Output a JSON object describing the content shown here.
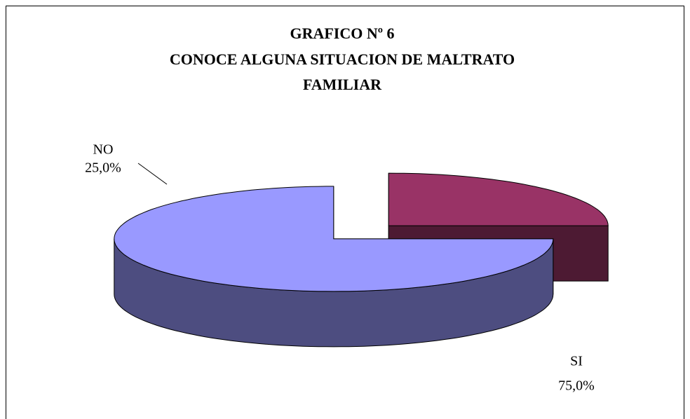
{
  "chart_data": {
    "type": "pie3d",
    "title": [
      "GRAFICO Nº 6",
      "CONOCE ALGUNA SITUACION DE MALTRATO",
      "FAMILIAR"
    ],
    "categories": [
      "NO",
      "SI"
    ],
    "values": [
      25,
      75
    ],
    "value_labels": [
      "25,0%",
      "75,0%"
    ],
    "colors": [
      "#993366",
      "#9999ff"
    ],
    "side_colors": [
      "#4d1a33",
      "#4d4d80"
    ]
  }
}
